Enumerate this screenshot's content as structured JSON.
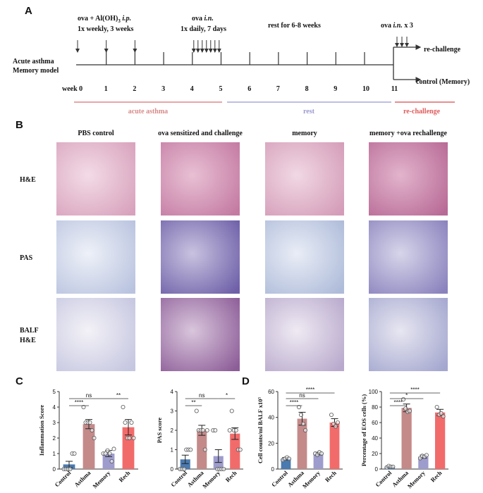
{
  "panel_a": {
    "label": "A",
    "model": [
      "Acute asthma",
      "Memory model"
    ],
    "step1": {
      "line1": [
        "ova + Al(OH)",
        "3",
        " i.p."
      ],
      "line2": "1x weekly, 3 weeks"
    },
    "step2": {
      "line1": [
        "ova ",
        "i.n."
      ],
      "line2": "1x daily, 7 days"
    },
    "step3": "rest for 6-8 weeks",
    "step4": [
      "ova ",
      "i.n.",
      " x 3"
    ],
    "branches": [
      "re-challenge",
      "control (Memory)"
    ],
    "weeks": [
      "week 0",
      "1",
      "2",
      "3",
      "4",
      "5",
      "6",
      "7",
      "8",
      "9",
      "10",
      "11"
    ],
    "phases": [
      "acute asthma",
      "rest",
      "re-challenge"
    ]
  },
  "panel_b": {
    "label": "B",
    "columns": [
      "PBS control",
      "ova sensitized and challenge",
      "memory",
      "memory +ova rechallenge"
    ],
    "rows": [
      [
        "H&E"
      ],
      [
        "PAS"
      ],
      [
        "BALF",
        "H&E"
      ]
    ]
  },
  "panel_c": {
    "label": "C"
  },
  "panel_d": {
    "label": "D"
  },
  "chart_data": [
    {
      "type": "bar",
      "ylabel": "Inflammation Score",
      "categories": [
        "Control",
        "Asthma",
        "Memory",
        "Rech"
      ],
      "colors": [
        "#4a7ab0",
        "#c48a8a",
        "#9e9ccc",
        "#f26b6b"
      ],
      "values": [
        0.3,
        2.9,
        1.0,
        2.7
      ],
      "errors": [
        0.2,
        0.3,
        0.2,
        0.5
      ],
      "points": [
        [
          0,
          0,
          0,
          0,
          1,
          1
        ],
        [
          4,
          3,
          3,
          3,
          2.5,
          2
        ],
        [
          1,
          1,
          1.2,
          1,
          0.5,
          1.3
        ],
        [
          4,
          3,
          2,
          2,
          3,
          2
        ]
      ],
      "ylim": [
        0,
        5
      ],
      "yticks": [
        0,
        1,
        2,
        3,
        4,
        5
      ],
      "annotations": [
        {
          "label": "****",
          "from": "Control",
          "to": "Asthma"
        },
        {
          "label": "ns",
          "from": "Control",
          "to": "Memory"
        },
        {
          "label": "**",
          "from": "Memory",
          "to": "Rech"
        }
      ]
    },
    {
      "type": "bar",
      "ylabel": "PAS score",
      "categories": [
        "Control",
        "Asthma",
        "Memory",
        "Rech"
      ],
      "colors": [
        "#4a7ab0",
        "#c48a8a",
        "#9e9ccc",
        "#f26b6b"
      ],
      "values": [
        0.5,
        2.0,
        0.67,
        1.83
      ],
      "errors": [
        0.22,
        0.26,
        0.33,
        0.3
      ],
      "points": [
        [
          0,
          0,
          0,
          1,
          1,
          1
        ],
        [
          3,
          2,
          2,
          2,
          1,
          2
        ],
        [
          2,
          2,
          0,
          0,
          0,
          0
        ],
        [
          2,
          3,
          2,
          2,
          1,
          1
        ]
      ],
      "ylim": [
        0,
        4
      ],
      "yticks": [
        0,
        1,
        2,
        3,
        4
      ],
      "annotations": [
        {
          "label": "**",
          "from": "Control",
          "to": "Asthma"
        },
        {
          "label": "ns",
          "from": "Control",
          "to": "Memory"
        },
        {
          "label": "*",
          "from": "Memory",
          "to": "Rech"
        }
      ]
    },
    {
      "type": "bar",
      "ylabel": "Cell counts/ml BALF x10⁵",
      "categories": [
        "Control",
        "Asthma",
        "Memory",
        "Rech"
      ],
      "colors": [
        "#4a7ab0",
        "#c48a8a",
        "#9e9ccc",
        "#f26b6b"
      ],
      "values": [
        8,
        39,
        12,
        36
      ],
      "errors": [
        1,
        5,
        1,
        3
      ],
      "points": [
        [
          7,
          8,
          9,
          8
        ],
        [
          48,
          42,
          35,
          30
        ],
        [
          12,
          11,
          13,
          12
        ],
        [
          42,
          35,
          33,
          36
        ]
      ],
      "ylim": [
        0,
        60
      ],
      "yticks": [
        0,
        20,
        40,
        60
      ],
      "annotations": [
        {
          "label": "****",
          "from": "Control",
          "to": "Asthma"
        },
        {
          "label": "ns",
          "from": "Control",
          "to": "Memory"
        },
        {
          "label": "****",
          "from": "Control",
          "to": "Rech"
        }
      ]
    },
    {
      "type": "bar",
      "ylabel": "Percentage of EOS cells (%)",
      "categories": [
        "Control",
        "Asthma",
        "Memory",
        "Rech"
      ],
      "colors": [
        "#4a7ab0",
        "#c48a8a",
        "#9e9ccc",
        "#f26b6b"
      ],
      "values": [
        3,
        79,
        16,
        73
      ],
      "errors": [
        1,
        5,
        2,
        4
      ],
      "points": [
        [
          2,
          4,
          3,
          3
        ],
        [
          90,
          78,
          74,
          75
        ],
        [
          14,
          17,
          16,
          18
        ],
        [
          80,
          70,
          72,
          68
        ]
      ],
      "ylim": [
        0,
        100
      ],
      "yticks": [
        0,
        20,
        40,
        60,
        80,
        100
      ],
      "annotations": [
        {
          "label": "****",
          "from": "Control",
          "to": "Asthma"
        },
        {
          "label": "*",
          "from": "Control",
          "to": "Memory"
        },
        {
          "label": "****",
          "from": "Control",
          "to": "Rech"
        }
      ]
    }
  ]
}
